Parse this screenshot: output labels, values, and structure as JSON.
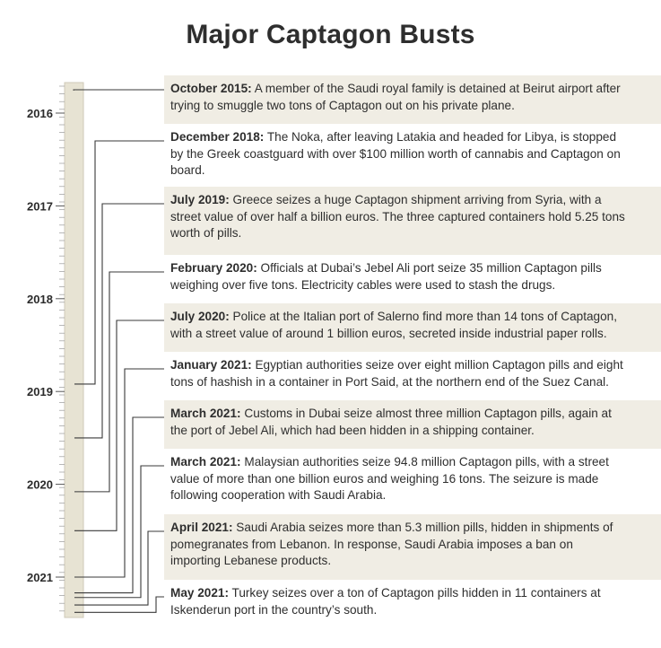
{
  "title": "Major Captagon Busts",
  "colors": {
    "shaded_row": "#f0ede4",
    "timeline_bar": "#e7e3d3",
    "connector": "#3a3a3a"
  },
  "timeline": {
    "year_labels": [
      "2016",
      "2017",
      "2018",
      "2019",
      "2020",
      "2021"
    ]
  },
  "events": [
    {
      "date": "October 2015:",
      "text": " A member of the Saudi royal family is detained at Beirut airport after trying to smuggle two tons of Captagon out on his private plane.",
      "shaded": true,
      "year_position": 2015.75
    },
    {
      "date": "December 2018:",
      "text": " The Noka, after leaving Latakia and headed for Libya, is stopped by the Greek coastguard with over $100 million worth of cannabis and Captagon on board.",
      "shaded": false,
      "year_position": 2018.92
    },
    {
      "date": "July 2019:",
      "text": " Greece seizes a huge Captagon shipment arriving from Syria, with a street value of over half a billion euros. The three captured containers hold 5.25 tons worth of pills.",
      "shaded": true,
      "year_position": 2019.5
    },
    {
      "date": "February 2020:",
      "text": " Officials at Dubai’s Jebel Ali port seize 35 million Captagon pills weighing over five tons. Electricity cables were used to stash the drugs.",
      "shaded": false,
      "year_position": 2020.08
    },
    {
      "date": "July 2020:",
      "text": " Police at the Italian port of Salerno find more than 14 tons of Captagon, with a street value of around 1 billion euros, secreted inside industrial paper rolls.",
      "shaded": true,
      "year_position": 2020.5
    },
    {
      "date": "January 2021:",
      "text": " Egyptian authorities seize over eight million Captagon pills and eight tons of hashish in a container in Port Said, at the northern end of  the Suez Canal.",
      "shaded": false,
      "year_position": 2021.0
    },
    {
      "date": "March 2021:",
      "text": " Customs in Dubai seize almost three million Captagon pills, again at the port of Jebel Ali, which had been hidden in a shipping container.",
      "shaded": true,
      "year_position": 2021.17
    },
    {
      "date": "March 2021:",
      "text": " Malaysian authorities seize 94.8 million Captagon pills, with a street value of more than one billion euros and weighing 16 tons. The seizure is made following cooperation with Saudi Arabia.",
      "shaded": false,
      "year_position": 2021.22
    },
    {
      "date": "April 2021:",
      "text": " Saudi Arabia seizes more than 5.3 million pills, hidden in shipments of pomegranates from Lebanon. In response, Saudi Arabia imposes a ban on importing Lebanese products.",
      "shaded": true,
      "year_position": 2021.3
    },
    {
      "date": "May 2021:",
      "text": " Turkey seizes over a ton of Captagon pills hidden in 11 containers at Iskenderun port in the country’s south.",
      "shaded": false,
      "year_position": 2021.38
    }
  ]
}
